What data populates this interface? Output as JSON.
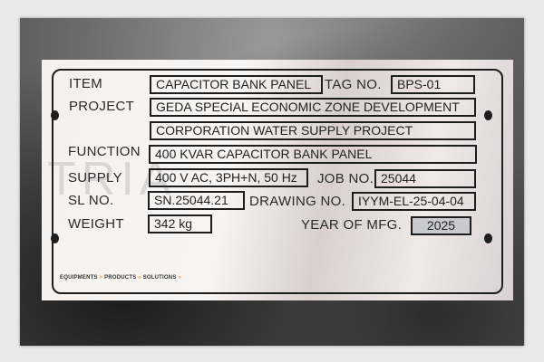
{
  "watermark": "TRIA",
  "plate": {
    "item_label": "ITEM",
    "item_value": "CAPACITOR BANK PANEL",
    "tag_label": "TAG NO.",
    "tag_value": "BPS-01",
    "project_label": "PROJECT",
    "project_line1": "GEDA SPECIAL ECONOMIC ZONE DEVELOPMENT",
    "project_line2": "CORPORATION WATER SUPPLY PROJECT",
    "function_label": "FUNCTION",
    "function_value": "400 KVAR CAPACITOR BANK PANEL",
    "supply_label": "SUPPLY",
    "supply_value": "400 V AC,  3PH+N, 50 Hz",
    "job_label": "JOB NO.",
    "job_value": "25044",
    "sl_label": "SL NO.",
    "sl_value": "SN.25044.21",
    "drawing_label": "DRAWING NO.",
    "drawing_value": "IYYM-EL-25-04-04",
    "weight_label": "WEIGHT",
    "weight_value": "342 kg",
    "year_label": "YEAR OF MFG.",
    "year_value": "2025",
    "tagline": [
      "EQUIPMENTS",
      "PRODUCTS",
      "SOLUTIONS"
    ],
    "tagline_arrows": [
      ">",
      "»",
      "»"
    ],
    "accent_color": "#e39a2a"
  }
}
